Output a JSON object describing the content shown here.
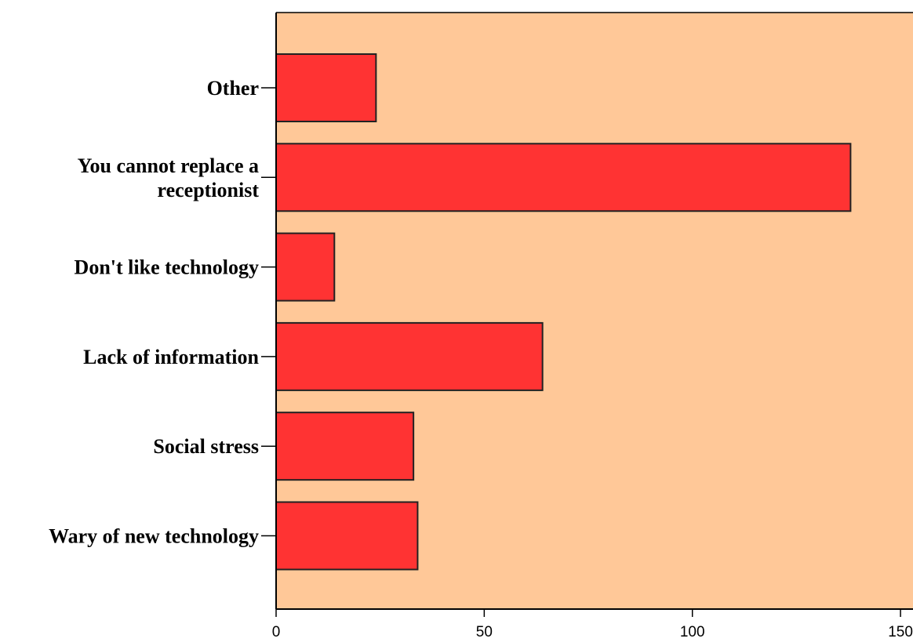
{
  "chart_data": {
    "type": "bar",
    "orientation": "horizontal",
    "categories": [
      "Other",
      "You cannot replace a receptionist",
      "Don't like technology",
      "Lack of information",
      "Social stress",
      "Wary of new technology"
    ],
    "category_lines": [
      [
        "Other"
      ],
      [
        "You cannot replace a",
        "receptionist"
      ],
      [
        "Don't like technology"
      ],
      [
        "Lack of information"
      ],
      [
        "Social stress"
      ],
      [
        "Wary of new technology"
      ]
    ],
    "values": [
      24,
      138,
      14,
      64,
      33,
      34
    ],
    "xlim": [
      0,
      153
    ],
    "x_ticks": [
      0,
      50,
      100,
      150
    ],
    "x_tick_labels": [
      "0",
      "50",
      "100",
      "150"
    ],
    "title": "",
    "xlabel": "",
    "ylabel": "",
    "grid": false,
    "legend": "none",
    "colors": {
      "bar_fill": "#ff3333",
      "bar_stroke": "#222222",
      "plot_background": "#ffc898",
      "axis": "#000000"
    }
  }
}
